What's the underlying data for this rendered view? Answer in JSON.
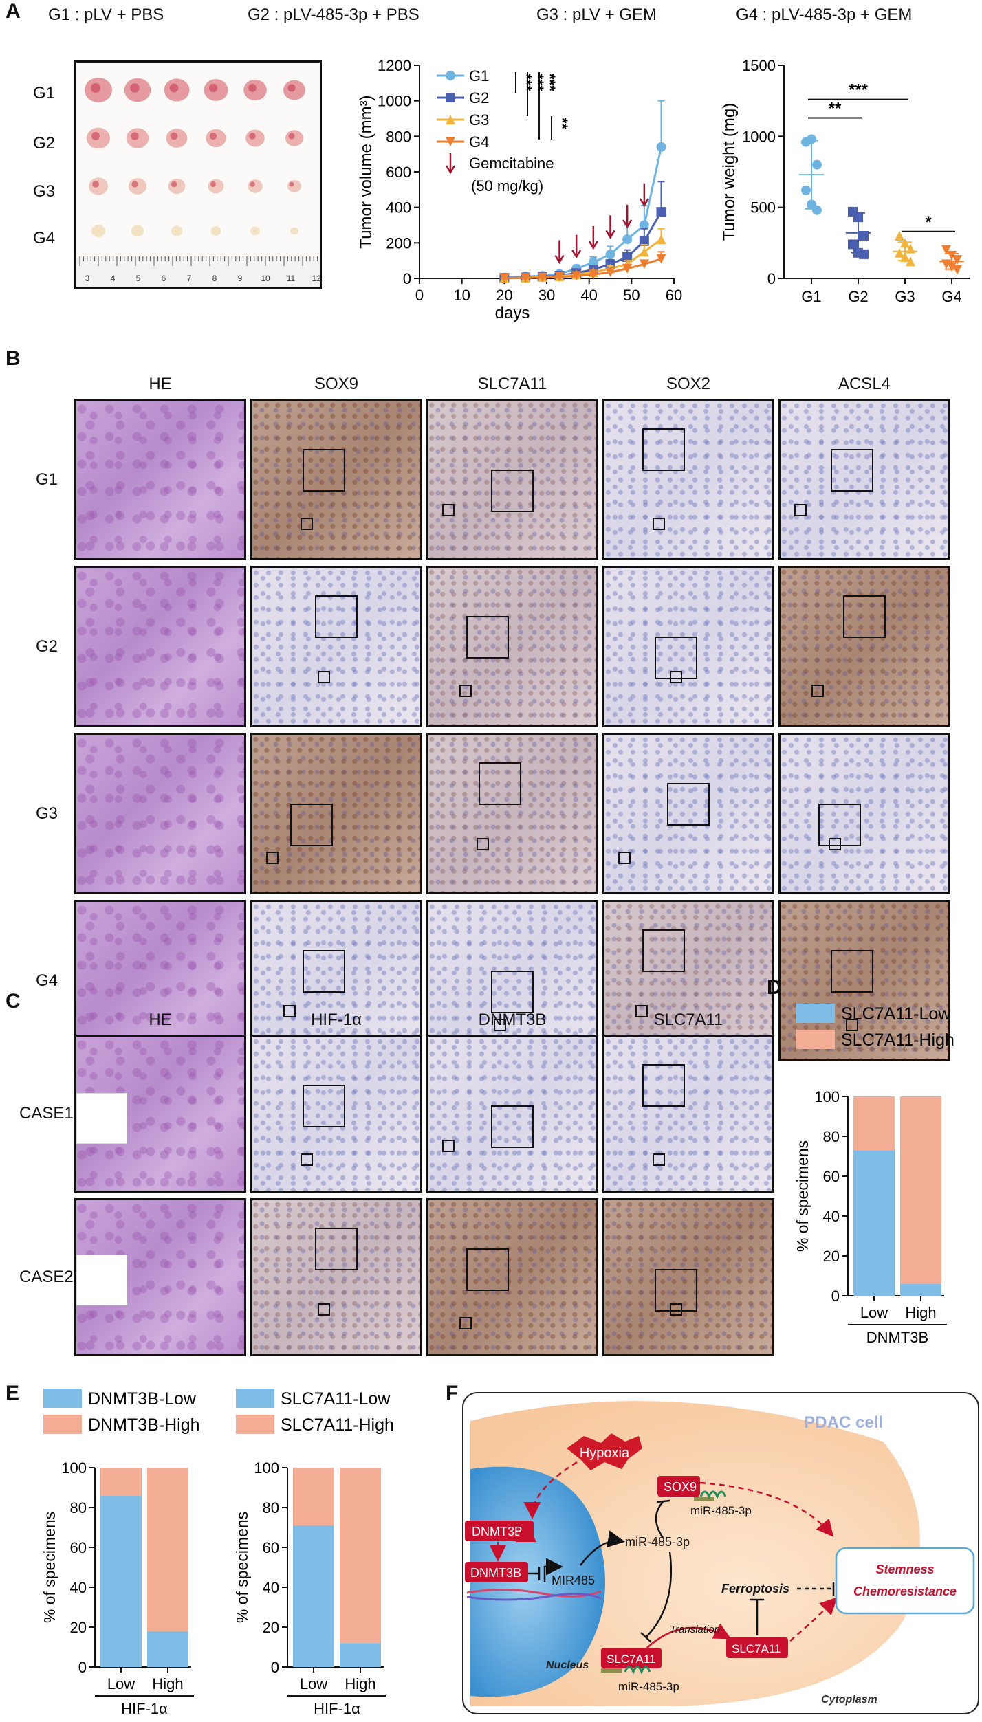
{
  "panels": {
    "A": "A",
    "B": "B",
    "C": "C",
    "D": "D",
    "E": "E",
    "F": "F"
  },
  "panelA": {
    "group_headers": [
      "G1 : pLV + PBS",
      "G2 : pLV-485-3p + PBS",
      "G3 : pLV + GEM",
      "G4 : pLV-485-3p + GEM"
    ],
    "row_labels": [
      "G1",
      "G2",
      "G3",
      "G4"
    ],
    "ruler_numbers": [
      "3",
      "4",
      "5",
      "6",
      "7",
      "8",
      "9",
      "10",
      "11",
      "12"
    ]
  },
  "chart_data": [
    {
      "type": "line",
      "name": "tumor-volume",
      "title": "",
      "xlabel": "days",
      "ylabel": "Tumor volume (mm³)",
      "xlim": [
        0,
        60
      ],
      "ylim": [
        0,
        1200
      ],
      "xticks": [
        "0",
        "10",
        "20",
        "30",
        "40",
        "50",
        "60"
      ],
      "yticks": [
        "0",
        "200",
        "400",
        "600",
        "800",
        "1000",
        "1200"
      ],
      "x": [
        20,
        25,
        29,
        33,
        37,
        41,
        45,
        49,
        53,
        57
      ],
      "series": [
        {
          "name": "G1",
          "color": "#6fb3e0",
          "marker": "circle",
          "values": [
            5,
            10,
            15,
            25,
            55,
            90,
            135,
            220,
            300,
            740
          ],
          "err": [
            2,
            3,
            4,
            8,
            20,
            30,
            45,
            80,
            110,
            260
          ]
        },
        {
          "name": "G2",
          "color": "#4a5fb0",
          "marker": "square",
          "values": [
            3,
            6,
            10,
            15,
            30,
            50,
            80,
            120,
            210,
            375
          ],
          "err": [
            2,
            2,
            3,
            5,
            10,
            15,
            25,
            40,
            70,
            170
          ]
        },
        {
          "name": "G3",
          "color": "#f2b33d",
          "marker": "triangle",
          "values": [
            2,
            4,
            8,
            12,
            22,
            35,
            55,
            80,
            150,
            220
          ],
          "err": [
            1,
            2,
            2,
            4,
            8,
            10,
            15,
            20,
            40,
            60
          ]
        },
        {
          "name": "G4",
          "color": "#ef7d2f",
          "marker": "triangle-down",
          "values": [
            1,
            3,
            5,
            8,
            14,
            22,
            35,
            55,
            80,
            110
          ],
          "err": [
            1,
            1,
            2,
            3,
            5,
            7,
            10,
            15,
            20,
            40
          ]
        }
      ],
      "arrows_x": [
        33,
        37,
        41,
        45,
        49,
        53
      ],
      "arrow_legend": [
        "Gemcitabine",
        "(50 mg/kg)"
      ],
      "significance": [
        "***",
        "***",
        "***",
        "**"
      ],
      "legend_position": "top-left"
    },
    {
      "type": "scatter",
      "name": "tumor-weight",
      "title": "",
      "xlabel": "",
      "ylabel": "Tumor weight (mg)",
      "ylim": [
        0,
        1500
      ],
      "yticks": [
        "0",
        "500",
        "1000",
        "1500"
      ],
      "categories": [
        "G1",
        "G2",
        "G3",
        "G4"
      ],
      "colors": [
        "#6fb3e0",
        "#4a5fb0",
        "#f2b33d",
        "#ef7d2f"
      ],
      "points": [
        [
          960,
          980,
          800,
          620,
          520,
          480
        ],
        [
          470,
          430,
          300,
          240,
          180,
          170
        ],
        [
          300,
          250,
          210,
          180,
          150,
          120
        ],
        [
          200,
          160,
          130,
          100,
          80,
          60
        ]
      ],
      "means": [
        730,
        320,
        190,
        120
      ],
      "sd": [
        240,
        140,
        65,
        55
      ],
      "significance": [
        {
          "label": "**",
          "from": "G1",
          "to": "G2"
        },
        {
          "label": "***",
          "from": "G1",
          "to": "G3"
        },
        {
          "label": "*",
          "from": "G3",
          "to": "G4"
        }
      ]
    },
    {
      "type": "bar",
      "name": "D",
      "title": "",
      "xlabel": "DNMT3B",
      "ylabel": "% of specimens",
      "ylim": [
        0,
        100
      ],
      "yticks": [
        "0",
        "20",
        "40",
        "60",
        "80",
        "100"
      ],
      "categories": [
        "Low",
        "High"
      ],
      "series": [
        {
          "name": "SLC7A11-Low",
          "color": "#7fbde6",
          "values": [
            73,
            6
          ]
        },
        {
          "name": "SLC7A11-High",
          "color": "#f2ad94",
          "values": [
            27,
            94
          ]
        }
      ],
      "stacked": true,
      "legend_position": "top"
    },
    {
      "type": "bar",
      "name": "E-left",
      "title": "",
      "xlabel": "HIF-1α",
      "ylabel": "% of specimens",
      "ylim": [
        0,
        100
      ],
      "yticks": [
        "0",
        "20",
        "40",
        "60",
        "80",
        "100"
      ],
      "categories": [
        "Low",
        "High"
      ],
      "series": [
        {
          "name": "DNMT3B-Low",
          "color": "#7fbde6",
          "values": [
            86,
            18
          ]
        },
        {
          "name": "DNMT3B-High",
          "color": "#f2ad94",
          "values": [
            14,
            82
          ]
        }
      ],
      "stacked": true,
      "legend_position": "top"
    },
    {
      "type": "bar",
      "name": "E-right",
      "title": "",
      "xlabel": "HIF-1α",
      "ylabel": "% of specimens",
      "ylim": [
        0,
        100
      ],
      "yticks": [
        "0",
        "20",
        "40",
        "60",
        "80",
        "100"
      ],
      "categories": [
        "Low",
        "High"
      ],
      "series": [
        {
          "name": "SLC7A11-Low",
          "color": "#7fbde6",
          "values": [
            71,
            12
          ]
        },
        {
          "name": "SLC7A11-High",
          "color": "#f2ad94",
          "values": [
            29,
            88
          ]
        }
      ],
      "stacked": true,
      "legend_position": "top"
    }
  ],
  "panelB": {
    "columns": [
      "HE",
      "SOX9",
      "SLC7A11",
      "SOX2",
      "ACSL4"
    ],
    "rows": [
      "G1",
      "G2",
      "G3",
      "G4"
    ],
    "stain": [
      [
        "he",
        "brown",
        "mid",
        "blue",
        "blue"
      ],
      [
        "he",
        "blue",
        "mid",
        "blue",
        "brown"
      ],
      [
        "he",
        "brown",
        "mid",
        "blue",
        "blue"
      ],
      [
        "he",
        "blue",
        "blue",
        "mid",
        "brown"
      ]
    ]
  },
  "panelC": {
    "columns": [
      "HE",
      "HIF-1α",
      "DNMT3B",
      "SLC7A11"
    ],
    "rows": [
      "CASE1",
      "CASE2"
    ],
    "stain": [
      [
        "he",
        "blue",
        "blue",
        "blue"
      ],
      [
        "he",
        "mid",
        "brown",
        "brown"
      ]
    ]
  },
  "panelF": {
    "cell_label": "PDAC cell",
    "hypoxia": "Hypoxia",
    "dnmt3b_1": "DNMT3B",
    "dnmt3b_2": "DNMT3B",
    "mir485_gene": "MIR485",
    "mirna_center": "miR-485-3p",
    "sox9": "SOX9",
    "mir_sox9": "miR-485-3p",
    "slc_left": "SLC7A11",
    "slc_right": "SLC7A11",
    "mir_slc": "miR-485-3p",
    "translation": "Translation",
    "ferroptosis": "Ferroptosis",
    "outcome_1": "Stemness",
    "outcome_2": "Chemoresistance",
    "nucleus": "Nucleus",
    "cytoplasm": "Cytoplasm"
  }
}
